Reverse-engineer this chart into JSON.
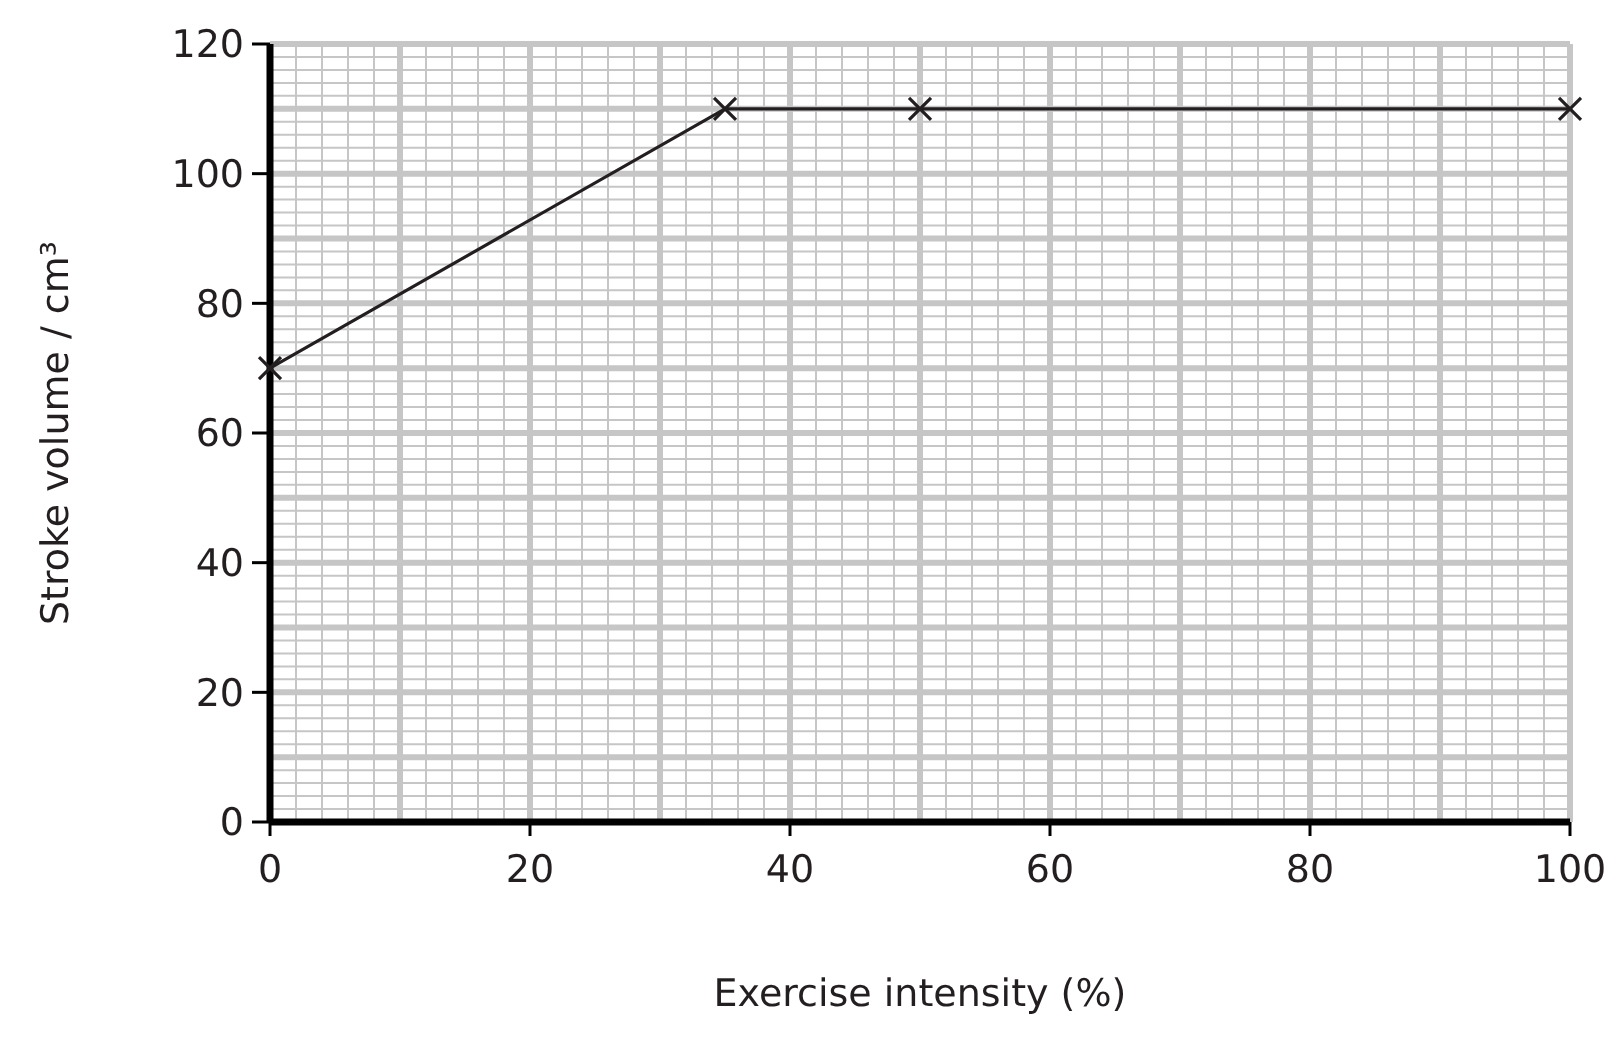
{
  "chart_data": {
    "type": "line",
    "xlabel": "Exercise intensity (%)",
    "ylabel": "Stroke volume / cm³",
    "x": [
      0,
      35,
      50,
      100
    ],
    "series": [
      {
        "color": "#231f20",
        "values": [
          70,
          110,
          110,
          110
        ]
      }
    ],
    "xlim": [
      0,
      100
    ],
    "xticks": [
      0,
      20,
      40,
      60,
      80,
      100
    ],
    "ylim": [
      0,
      120
    ],
    "yticks": [
      0,
      20,
      40,
      60,
      80,
      100,
      120
    ],
    "grid": true,
    "marker": "cross",
    "line_style": "solid"
  }
}
